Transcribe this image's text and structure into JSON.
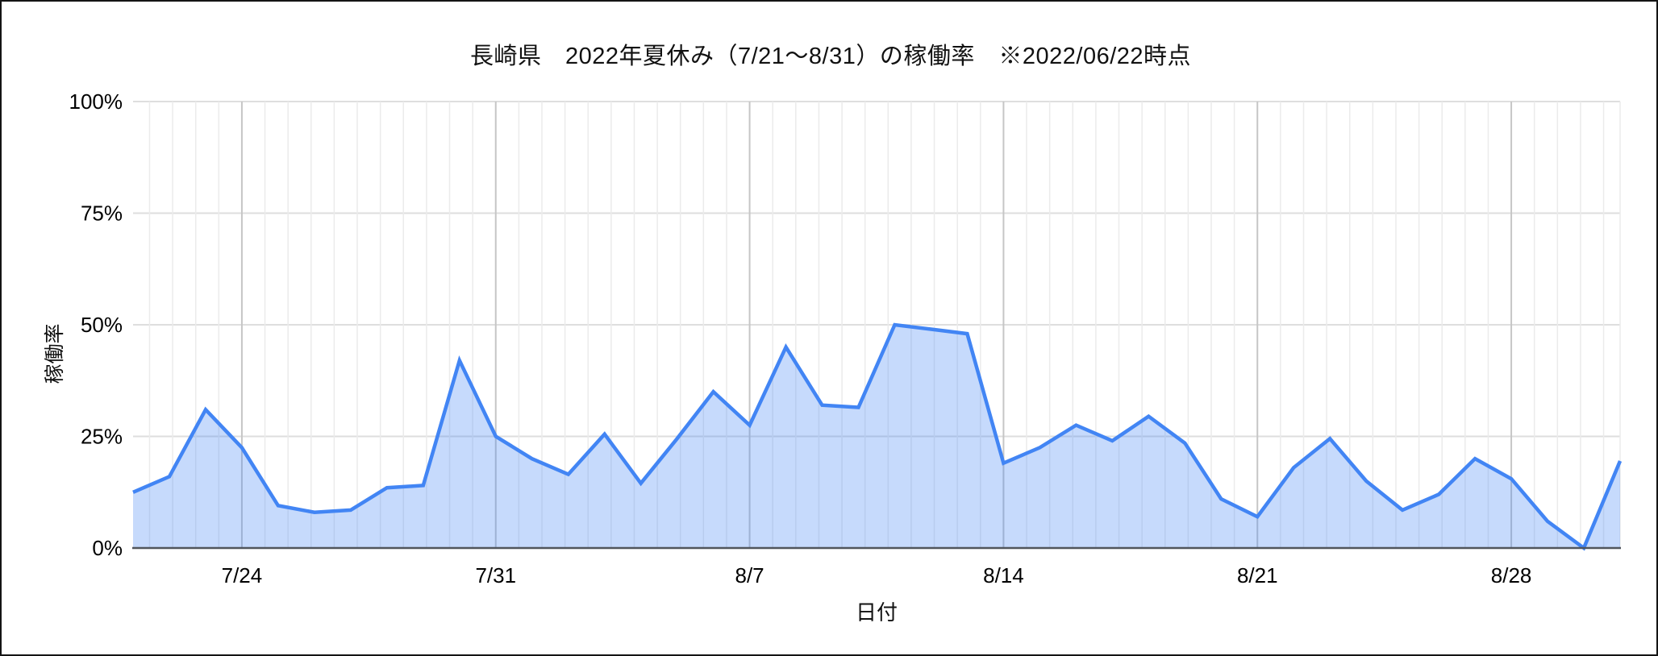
{
  "chart": {
    "title": "長崎県　2022年夏休み（7/21〜8/31）の稼働率　※2022/06/22時点",
    "x_axis_title": "日付",
    "y_axis_title": "稼働率"
  },
  "chart_data": {
    "type": "area",
    "title": "長崎県　2022年夏休み（7/21〜8/31）の稼働率　※2022/06/22時点",
    "xlabel": "日付",
    "ylabel": "稼働率",
    "ylim": [
      0,
      100
    ],
    "grid": "on",
    "legend": "none",
    "y_tick_labels": [
      "0%",
      "25%",
      "50%",
      "75%",
      "100%"
    ],
    "y_tick_values": [
      0,
      25,
      50,
      75,
      100
    ],
    "x_tick_labels": [
      "7/24",
      "7/31",
      "8/7",
      "8/14",
      "8/21",
      "8/28"
    ],
    "x_tick_day_indices": [
      3,
      10,
      17,
      24,
      31,
      38
    ],
    "x": [
      "7/21",
      "7/22",
      "7/23",
      "7/24",
      "7/25",
      "7/26",
      "7/27",
      "7/28",
      "7/29",
      "7/30",
      "7/31",
      "8/1",
      "8/2",
      "8/3",
      "8/4",
      "8/5",
      "8/6",
      "8/7",
      "8/8",
      "8/9",
      "8/10",
      "8/11",
      "8/12",
      "8/13",
      "8/14",
      "8/15",
      "8/16",
      "8/17",
      "8/18",
      "8/19",
      "8/20",
      "8/21",
      "8/22",
      "8/23",
      "8/24",
      "8/25",
      "8/26",
      "8/27",
      "8/28",
      "8/29",
      "8/30",
      "8/31"
    ],
    "values": [
      12.5,
      16,
      31,
      22.5,
      9.5,
      8,
      8.5,
      13.5,
      14,
      42,
      25,
      20,
      16.5,
      25.5,
      14.5,
      24.5,
      35,
      27.5,
      45,
      32,
      31.5,
      50,
      49,
      48,
      19,
      22.5,
      27.5,
      24,
      29.5,
      23.5,
      11,
      7,
      18,
      24.5,
      15,
      8.5,
      12,
      20,
      15.5,
      6,
      0,
      19.5
    ],
    "colors": {
      "line": "#4285f4",
      "fill": "#4285f4",
      "fill_opacity": 0.3,
      "h_gridline": "#dedede",
      "v_minor_gridline": "#ebebeb",
      "v_major_gridline": "#c6c6c6",
      "axis_baseline": "#50555c",
      "tick_label": "#000000",
      "title": "#111111"
    }
  }
}
